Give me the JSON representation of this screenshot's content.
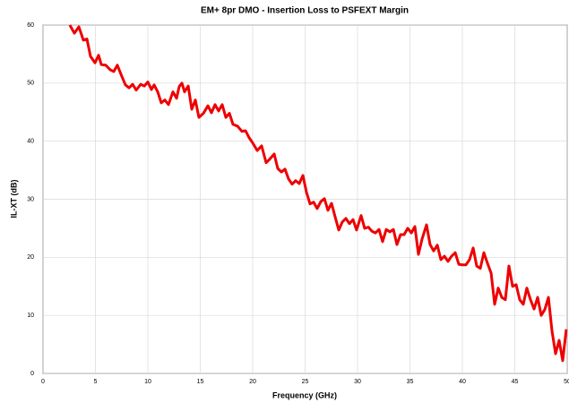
{
  "chart_data": {
    "type": "line",
    "title": "EM+ 8pr DMO - Insertion Loss to PSFEXT Margin",
    "xlabel": "Frequency (GHz)",
    "ylabel": "IL-XT (dB)",
    "xlim": [
      0,
      50
    ],
    "ylim": [
      0,
      60
    ],
    "xticks": [
      0,
      5,
      10,
      15,
      20,
      25,
      30,
      35,
      40,
      45,
      50
    ],
    "yticks": [
      0,
      10,
      20,
      30,
      40,
      50,
      60
    ],
    "grid": true,
    "x": [
      2.56,
      2.99,
      3.42,
      3.85,
      4.19,
      4.53,
      4.96,
      5.3,
      5.56,
      5.98,
      6.41,
      6.75,
      7.09,
      7.44,
      7.86,
      8.21,
      8.55,
      8.89,
      9.32,
      9.66,
      10.0,
      10.34,
      10.6,
      10.94,
      11.28,
      11.62,
      11.97,
      12.39,
      12.74,
      12.99,
      13.25,
      13.5,
      13.85,
      14.19,
      14.53,
      14.87,
      15.3,
      15.73,
      16.07,
      16.41,
      16.75,
      17.09,
      17.44,
      17.78,
      18.12,
      18.55,
      18.97,
      19.32,
      19.66,
      20.0,
      20.43,
      20.85,
      21.28,
      21.62,
      22.05,
      22.39,
      22.74,
      23.08,
      23.42,
      23.76,
      24.1,
      24.44,
      24.79,
      25.13,
      25.47,
      25.81,
      26.15,
      26.5,
      26.84,
      27.18,
      27.52,
      27.86,
      28.21,
      28.55,
      28.89,
      29.23,
      29.57,
      29.91,
      30.34,
      30.68,
      31.03,
      31.37,
      31.71,
      32.05,
      32.39,
      32.74,
      33.08,
      33.42,
      33.76,
      34.1,
      34.44,
      34.79,
      35.13,
      35.47,
      35.81,
      36.15,
      36.58,
      36.92,
      37.26,
      37.61,
      37.95,
      38.29,
      38.63,
      38.97,
      39.32,
      39.66,
      40.0,
      40.34,
      40.68,
      41.03,
      41.37,
      41.71,
      42.05,
      42.39,
      42.74,
      43.08,
      43.42,
      43.76,
      44.1,
      44.44,
      44.79,
      45.13,
      45.47,
      45.81,
      46.15,
      46.5,
      46.84,
      47.18,
      47.52,
      47.86,
      48.21,
      48.55,
      48.89,
      49.23,
      49.57,
      49.91
    ],
    "series": [
      {
        "color": "#ee0000",
        "values": [
          60.0,
          58.6,
          59.7,
          57.4,
          57.6,
          54.6,
          53.5,
          54.8,
          53.2,
          53.1,
          52.3,
          52.0,
          53.1,
          51.5,
          49.7,
          49.2,
          49.8,
          48.8,
          49.8,
          49.5,
          50.2,
          48.9,
          49.7,
          48.5,
          46.6,
          47.1,
          46.3,
          48.5,
          47.4,
          49.4,
          50.0,
          48.5,
          49.5,
          45.5,
          47.1,
          44.1,
          44.8,
          46.1,
          44.9,
          46.3,
          45.2,
          46.3,
          44.1,
          44.8,
          42.9,
          42.6,
          41.7,
          41.8,
          40.6,
          39.7,
          38.4,
          39.2,
          36.3,
          36.9,
          37.8,
          35.3,
          34.7,
          35.2,
          33.5,
          32.6,
          33.2,
          32.7,
          34.1,
          31.2,
          29.2,
          29.5,
          28.4,
          29.6,
          30.1,
          28.1,
          29.3,
          27.0,
          24.7,
          26.1,
          26.7,
          25.8,
          26.5,
          24.7,
          27.2,
          25.0,
          25.2,
          24.5,
          24.2,
          24.8,
          22.7,
          24.8,
          24.4,
          24.8,
          22.2,
          23.9,
          23.9,
          25.0,
          24.2,
          25.3,
          20.5,
          23.1,
          25.6,
          22.2,
          21.1,
          22.1,
          19.6,
          20.2,
          19.3,
          20.2,
          20.8,
          18.8,
          18.7,
          18.7,
          19.6,
          21.6,
          18.5,
          18.1,
          20.8,
          19.0,
          17.3,
          11.9,
          14.7,
          13.1,
          12.7,
          18.5,
          15.0,
          15.3,
          12.7,
          11.9,
          14.7,
          12.7,
          11.1,
          13.1,
          10.0,
          11.0,
          13.1,
          7.3,
          3.4,
          5.7,
          2.2,
          7.6
        ]
      }
    ]
  }
}
